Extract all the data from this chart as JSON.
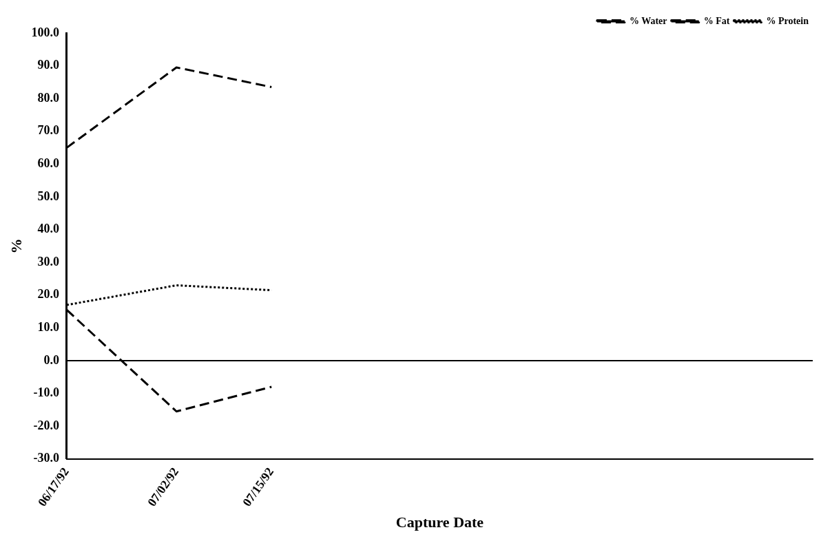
{
  "chart_data": {
    "type": "line",
    "xlabel": "Capture Date",
    "ylabel": "%",
    "x": [
      "1992-06-17",
      "1992-07-02",
      "1992-07-15"
    ],
    "xlim": [
      "1992-06-17",
      "1992-09-27"
    ],
    "xticks": [
      {
        "value": "1992-06-17",
        "label": "06/17/92"
      },
      {
        "value": "1992-07-02",
        "label": "07/02/92"
      },
      {
        "value": "1992-07-15",
        "label": "07/15/92"
      }
    ],
    "ylim": [
      -30,
      100
    ],
    "yticks": [
      {
        "value": -30,
        "label": "-30.0"
      },
      {
        "value": -20,
        "label": "-20.0"
      },
      {
        "value": -10,
        "label": "-10.0"
      },
      {
        "value": 0,
        "label": "0.0"
      },
      {
        "value": 10,
        "label": "10.0"
      },
      {
        "value": 20,
        "label": "20.0"
      },
      {
        "value": 30,
        "label": "30.0"
      },
      {
        "value": 40,
        "label": "40.0"
      },
      {
        "value": 50,
        "label": "50.0"
      },
      {
        "value": 60,
        "label": "60.0"
      },
      {
        "value": 70,
        "label": "70.0"
      },
      {
        "value": 80,
        "label": "80.0"
      },
      {
        "value": 90,
        "label": "90.0"
      },
      {
        "value": 100,
        "label": "100.0"
      }
    ],
    "series": [
      {
        "name": "% Water",
        "color": "#000000",
        "line_style": "dashed",
        "values": [
          65,
          89.5,
          83.5
        ]
      },
      {
        "name": "% Fat",
        "color": "#000000",
        "line_style": "dashed",
        "values": [
          15.5,
          -15.5,
          -8
        ]
      },
      {
        "name": "% Protein",
        "color": "#000000",
        "line_style": "dotted",
        "values": [
          17,
          23,
          21.5
        ]
      }
    ],
    "ref_lines": [
      {
        "axis": "y",
        "value": 0,
        "color": "#000000"
      }
    ],
    "grid": false,
    "legend": "top right",
    "marker": "none"
  }
}
